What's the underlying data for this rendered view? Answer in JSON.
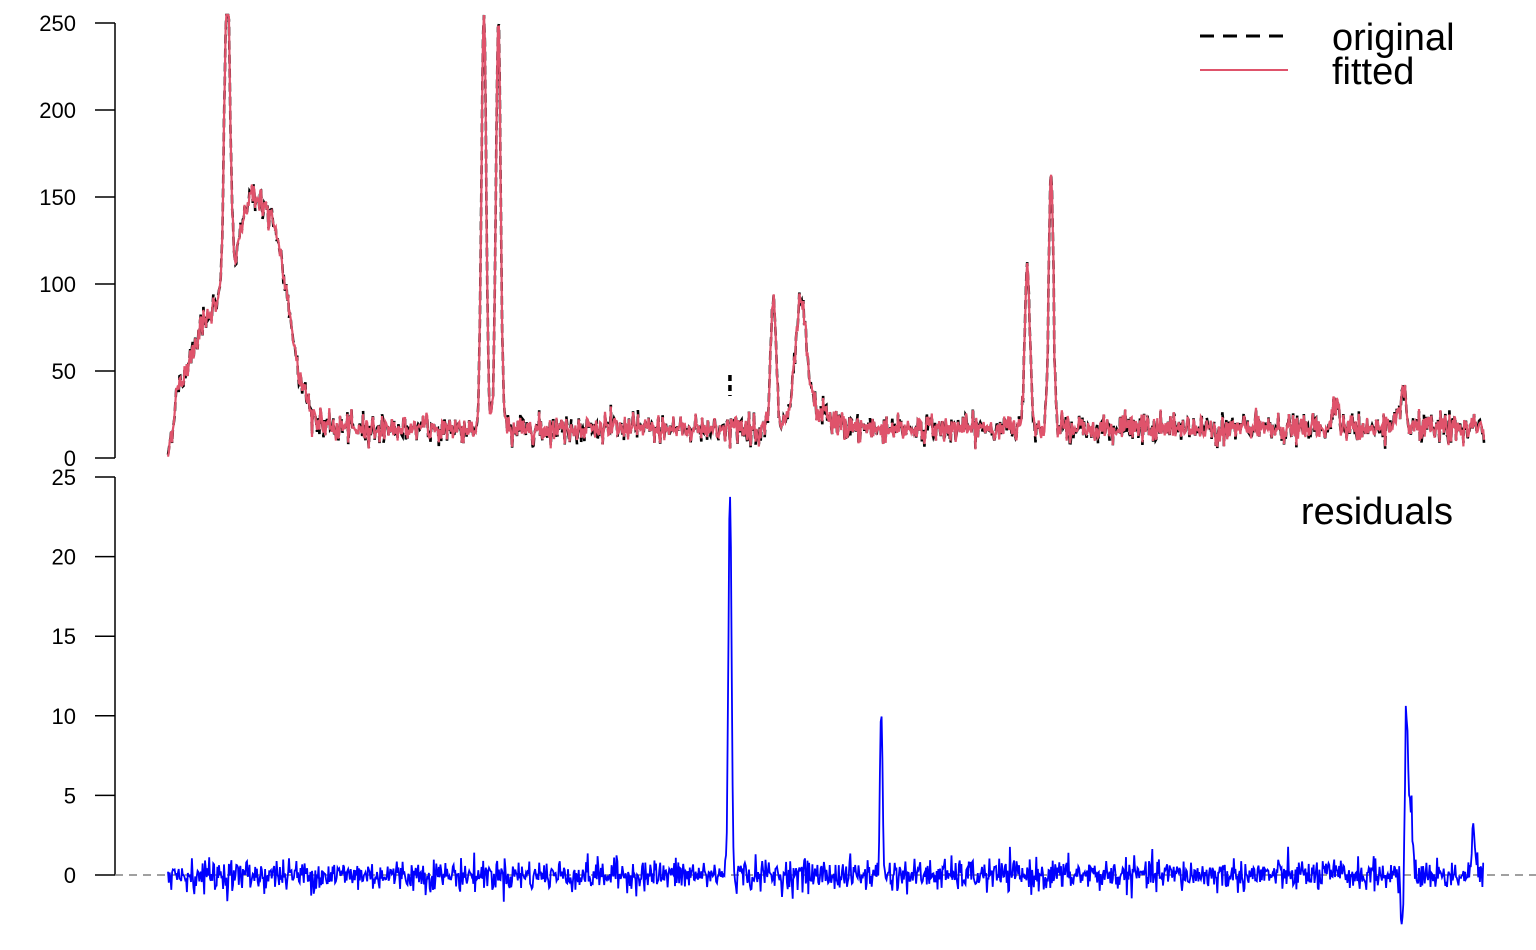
{
  "chart_data": [
    {
      "type": "line",
      "title": "",
      "xlabel": "",
      "ylabel": "",
      "ylim": [
        0,
        250
      ],
      "yticks": [
        0,
        50,
        100,
        150,
        200,
        250
      ],
      "ytick_labels": [
        "0",
        "50",
        "100",
        "150",
        "200",
        "250"
      ],
      "grid": false,
      "legend": {
        "placement": "top-right",
        "entries": [
          "original",
          "fitted"
        ]
      },
      "series": [
        {
          "name": "original",
          "color": "#000000",
          "style": "dashed"
        },
        {
          "name": "fitted",
          "color": "#DF536B",
          "style": "solid"
        }
      ],
      "x_range": [
        0,
        1000
      ],
      "baseline": 17,
      "noise_amplitude": 4,
      "peaks": [
        {
          "x": 45,
          "height": 185,
          "width": 2.2
        },
        {
          "x": 35,
          "height": 68,
          "width": 18
        },
        {
          "x": 78,
          "height": 112,
          "width": 14
        },
        {
          "x": 60,
          "height": 55,
          "width": 8
        },
        {
          "x": 240,
          "height": 240,
          "width": 1.8
        },
        {
          "x": 251,
          "height": 234,
          "width": 1.8
        },
        {
          "x": 460,
          "height": 72,
          "width": 2.0
        },
        {
          "x": 481,
          "height": 62,
          "width": 4.0
        },
        {
          "x": 488,
          "height": 12,
          "width": 12
        },
        {
          "x": 653,
          "height": 95,
          "width": 2.0
        },
        {
          "x": 671,
          "height": 150,
          "width": 1.8
        },
        {
          "x": 887,
          "height": 20,
          "width": 2.0
        },
        {
          "x": 938,
          "height": 22,
          "width": 2.0
        }
      ],
      "highlight": {
        "x": 427,
        "y": 46
      }
    },
    {
      "type": "line",
      "title": "",
      "annotation": "residuals",
      "ylim": [
        0,
        25
      ],
      "yticks": [
        0,
        5,
        10,
        15,
        20,
        25
      ],
      "ytick_labels": [
        "0",
        "5",
        "10",
        "15",
        "20",
        "25"
      ],
      "grid": false,
      "series": [
        {
          "name": "residuals",
          "color": "#0000FF",
          "style": "solid"
        }
      ],
      "reference_line": {
        "y": 0,
        "color": "#808080",
        "style": "dashed"
      },
      "x_range": [
        0,
        1000
      ],
      "noise_amplitude": 0.9,
      "spikes": [
        {
          "x": 427,
          "height": 24,
          "width": 1.2
        },
        {
          "x": 542,
          "height": 10,
          "width": 1.0
        },
        {
          "x": 941,
          "height": 10,
          "width": 1.0
        },
        {
          "x": 944,
          "height": 5,
          "width": 1.5
        },
        {
          "x": 938,
          "height": -3.5,
          "width": 1.0
        },
        {
          "x": 992,
          "height": 2.5,
          "width": 1.5
        }
      ]
    }
  ]
}
